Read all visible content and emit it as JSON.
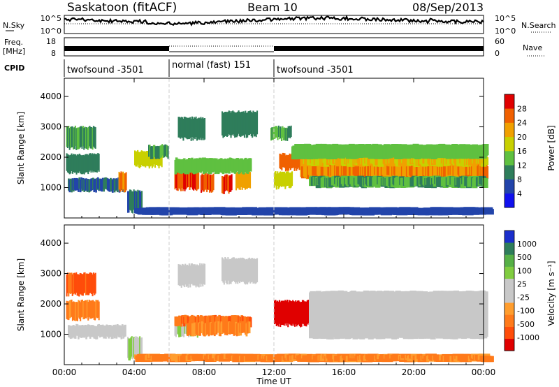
{
  "header": {
    "station": "Saskatoon (fitACF)",
    "beam": "Beam 10",
    "date": "08/Sep/2013"
  },
  "noise_panel": {
    "left_label": "N.Sky",
    "right_label": "N.Search",
    "left_ticks": [
      "10^5",
      "10^0"
    ],
    "right_ticks": [
      "10^5",
      "10^0"
    ]
  },
  "freq_panel": {
    "left_label_line1": "Freq.",
    "left_label_line2": "[MHz]",
    "right_label": "Nave",
    "left_ticks": [
      "18",
      "8"
    ],
    "right_ticks": [
      "60",
      "0"
    ]
  },
  "cpid": {
    "label": "CPID",
    "segments": [
      {
        "name": "twofsound -3501",
        "start_h": 0,
        "end_h": 6
      },
      {
        "name": "normal (fast) 151",
        "start_h": 6,
        "end_h": 12
      },
      {
        "name": "twofsound -3501",
        "start_h": 12,
        "end_h": 24
      }
    ]
  },
  "xaxis": {
    "label": "Time UT",
    "ticks": [
      "00:00",
      "04:00",
      "08:00",
      "12:00",
      "16:00",
      "20:00",
      "00:00"
    ]
  },
  "power_panel": {
    "ylabel": "Slant Range [km]",
    "yticks": [
      "1000",
      "2000",
      "3000",
      "4000"
    ],
    "colorbar_label": "Power [dB]",
    "colorbar_ticks": [
      "4",
      "8",
      "12",
      "16",
      "20",
      "24",
      "28"
    ],
    "colors": [
      "#1010ee",
      "#2244aa",
      "#2e7d5b",
      "#5fc040",
      "#c8d000",
      "#f0a000",
      "#f06000",
      "#e00000"
    ]
  },
  "velocity_panel": {
    "ylabel": "Slant Range [km]",
    "yticks": [
      "1000",
      "2000",
      "3000",
      "4000"
    ],
    "colorbar_label": "Velocity [m s⁻¹]",
    "colorbar_ticks": [
      "1000",
      "500",
      "100",
      "25",
      "-25",
      "-100",
      "-500",
      "-1000"
    ],
    "colors": [
      "#1a2ecc",
      "#2e7d5b",
      "#56b046",
      "#80cc40",
      "#c8c8c8",
      "#c8c8c8",
      "#ff9d2e",
      "#ff7a1a",
      "#ff4d0a",
      "#e00000"
    ]
  },
  "chart_data": {
    "type": "heatmap",
    "x_range_hours": [
      0,
      24
    ],
    "y_range_km": [
      0,
      4600
    ],
    "power_regions": [
      {
        "t0": 0.2,
        "t1": 3.5,
        "r0": 900,
        "r1": 1300,
        "val": 8
      },
      {
        "t0": 0.1,
        "t1": 2.0,
        "r0": 1500,
        "r1": 2100,
        "val": 10
      },
      {
        "t0": 0.1,
        "t1": 1.8,
        "r0": 2300,
        "r1": 3000,
        "val": 12
      },
      {
        "t0": 3.1,
        "t1": 3.5,
        "r0": 900,
        "r1": 1500,
        "val": 24
      },
      {
        "t0": 3.6,
        "t1": 4.4,
        "r0": 200,
        "r1": 900,
        "val": 8
      },
      {
        "t0": 4.0,
        "t1": 5.6,
        "r0": 1700,
        "r1": 2200,
        "val": 18
      },
      {
        "t0": 4.8,
        "t1": 5.9,
        "r0": 2000,
        "r1": 2400,
        "val": 12
      },
      {
        "t0": 6.3,
        "t1": 7.7,
        "r0": 950,
        "r1": 1550,
        "val": 28
      },
      {
        "t0": 7.8,
        "t1": 8.5,
        "r0": 900,
        "r1": 1450,
        "val": 27
      },
      {
        "t0": 9.0,
        "t1": 9.6,
        "r0": 850,
        "r1": 1400,
        "val": 28
      },
      {
        "t0": 9.8,
        "t1": 10.6,
        "r0": 950,
        "r1": 1500,
        "val": 22
      },
      {
        "t0": 6.3,
        "t1": 10.6,
        "r0": 1500,
        "r1": 1950,
        "val": 14
      },
      {
        "t0": 6.5,
        "t1": 8.0,
        "r0": 2600,
        "r1": 3300,
        "val": 10
      },
      {
        "t0": 9.0,
        "t1": 11.0,
        "r0": 2700,
        "r1": 3500,
        "val": 10
      },
      {
        "t0": 11.8,
        "t1": 13.0,
        "r0": 2600,
        "r1": 3000,
        "val": 12
      },
      {
        "t0": 12.3,
        "t1": 14.2,
        "r0": 1600,
        "r1": 2100,
        "val": 26
      },
      {
        "t0": 12.0,
        "t1": 13.0,
        "r0": 1000,
        "r1": 1500,
        "val": 18
      },
      {
        "t0": 13.5,
        "t1": 24.0,
        "r0": 1350,
        "r1": 1750,
        "val": 24
      },
      {
        "t0": 13.5,
        "t1": 24.0,
        "r0": 1750,
        "r1": 2000,
        "val": 20
      },
      {
        "t0": 13.0,
        "t1": 24.0,
        "r0": 2000,
        "r1": 2400,
        "val": 14
      },
      {
        "t0": 14.0,
        "t1": 24.0,
        "r0": 1050,
        "r1": 1350,
        "val": 12
      },
      {
        "t0": 4.0,
        "t1": 24.0,
        "r0": 150,
        "r1": 320,
        "val": 6
      }
    ],
    "velocity_regions": [
      {
        "t0": 0.2,
        "t1": 3.5,
        "r0": 900,
        "r1": 1300,
        "val": 50
      },
      {
        "t0": 0.1,
        "t1": 2.0,
        "r0": 1500,
        "r1": 2100,
        "val": -150
      },
      {
        "t0": 0.1,
        "t1": 1.8,
        "r0": 2300,
        "r1": 3000,
        "val": -300
      },
      {
        "t0": 3.6,
        "t1": 4.4,
        "r0": 200,
        "r1": 900,
        "val": 100
      },
      {
        "t0": 6.3,
        "t1": 7.7,
        "r0": 950,
        "r1": 1550,
        "val": 100
      },
      {
        "t0": 6.3,
        "t1": 10.6,
        "r0": 1300,
        "r1": 1600,
        "val": -200
      },
      {
        "t0": 7.0,
        "t1": 10.6,
        "r0": 1000,
        "r1": 1400,
        "val": -150
      },
      {
        "t0": 6.5,
        "t1": 8.0,
        "r0": 2600,
        "r1": 3300,
        "val": 0
      },
      {
        "t0": 9.0,
        "t1": 11.0,
        "r0": 2700,
        "r1": 3500,
        "val": 0
      },
      {
        "t0": 12.0,
        "t1": 14.2,
        "r0": 1300,
        "r1": 2100,
        "val": -600
      },
      {
        "t0": 14.0,
        "t1": 24.0,
        "r0": 900,
        "r1": 2400,
        "val": 0
      },
      {
        "t0": 4.0,
        "t1": 24.0,
        "r0": 150,
        "r1": 320,
        "val": -150
      }
    ]
  }
}
